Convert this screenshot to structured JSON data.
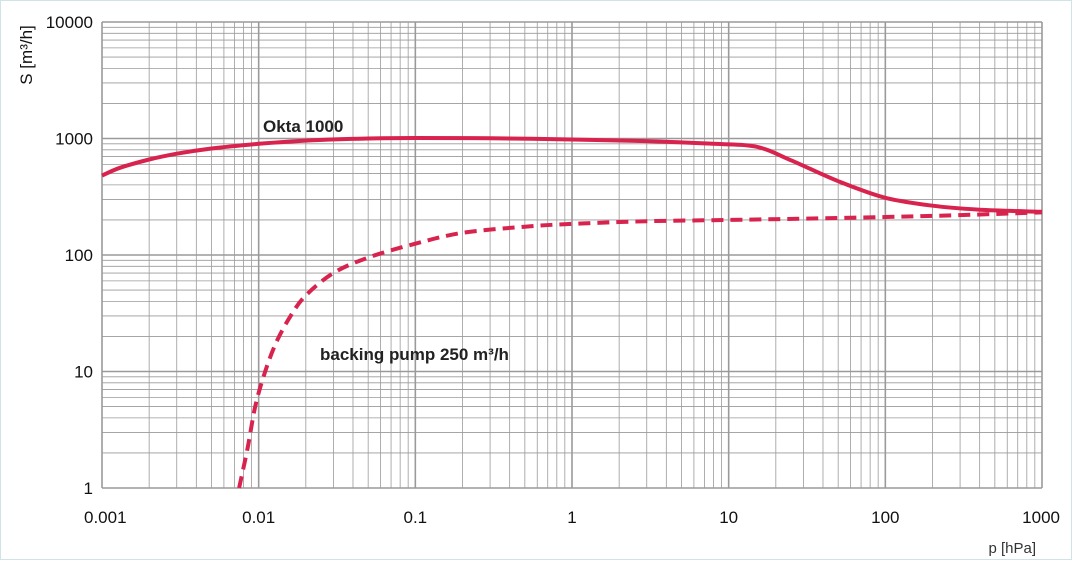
{
  "chart_data": {
    "type": "line",
    "title": "",
    "xlabel": "p [hPa]",
    "ylabel": "S [m³/h]",
    "xscale": "log",
    "yscale": "log",
    "xlim": [
      0.001,
      1000
    ],
    "ylim": [
      1,
      10000
    ],
    "xticks": [
      "0.001",
      "0.01",
      "0.1",
      "1",
      "10",
      "100",
      "1000"
    ],
    "yticks": [
      "1",
      "10",
      "100",
      "1000",
      "10000"
    ],
    "grid": true,
    "colors": {
      "series": "#d8234e",
      "grid": "#9a9a9a"
    },
    "series": [
      {
        "name": "Okta 1000",
        "style": "solid",
        "points": [
          [
            0.001,
            480
          ],
          [
            0.0013,
            560
          ],
          [
            0.002,
            660
          ],
          [
            0.003,
            740
          ],
          [
            0.005,
            820
          ],
          [
            0.01,
            900
          ],
          [
            0.02,
            960
          ],
          [
            0.05,
            1000
          ],
          [
            0.1,
            1010
          ],
          [
            0.3,
            1005
          ],
          [
            1,
            980
          ],
          [
            3,
            950
          ],
          [
            8,
            900
          ],
          [
            15,
            850
          ],
          [
            25,
            650
          ],
          [
            50,
            430
          ],
          [
            100,
            310
          ],
          [
            200,
            265
          ],
          [
            400,
            245
          ],
          [
            1000,
            235
          ]
        ]
      },
      {
        "name": "backing pump 250 m³/h",
        "style": "dashed",
        "points": [
          [
            0.0075,
            1
          ],
          [
            0.0085,
            2.2
          ],
          [
            0.0095,
            5
          ],
          [
            0.011,
            10
          ],
          [
            0.013,
            18
          ],
          [
            0.016,
            30
          ],
          [
            0.02,
            45
          ],
          [
            0.03,
            70
          ],
          [
            0.05,
            95
          ],
          [
            0.1,
            125
          ],
          [
            0.2,
            155
          ],
          [
            0.5,
            175
          ],
          [
            1,
            185
          ],
          [
            3,
            195
          ],
          [
            10,
            200
          ],
          [
            30,
            205
          ],
          [
            100,
            212
          ],
          [
            300,
            220
          ],
          [
            1000,
            232
          ]
        ]
      }
    ]
  }
}
